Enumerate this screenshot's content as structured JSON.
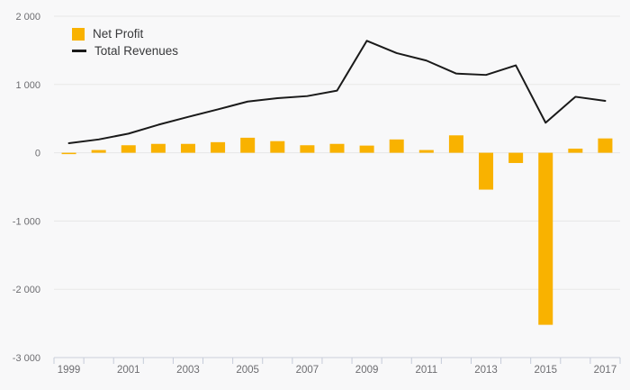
{
  "legend": {
    "items": [
      {
        "label": "Net Profit",
        "swatch": "bar-swatch",
        "color": "#f9b200"
      },
      {
        "label": "Total Revenues",
        "swatch": "line-swatch",
        "color": "#1a1a1a"
      }
    ]
  },
  "chart_data": {
    "type": "combo",
    "title": "",
    "x": [
      1999,
      2000,
      2001,
      2002,
      2003,
      2004,
      2005,
      2006,
      2007,
      2008,
      2009,
      2010,
      2011,
      2012,
      2013,
      2014,
      2015,
      2016,
      2017
    ],
    "series": [
      {
        "name": "Net Profit",
        "type": "bar",
        "color": "#f9b200",
        "values": [
          -20,
          40,
          110,
          130,
          130,
          155,
          220,
          170,
          110,
          130,
          105,
          195,
          40,
          255,
          -540,
          -150,
          -2520,
          60,
          210
        ]
      },
      {
        "name": "Total Revenues",
        "type": "line",
        "color": "#1a1a1a",
        "values": [
          140,
          195,
          280,
          410,
          525,
          635,
          750,
          800,
          830,
          910,
          1640,
          1460,
          1350,
          1160,
          1140,
          1280,
          440,
          820,
          760
        ]
      }
    ],
    "ylim": [
      -3000,
      2000
    ],
    "yticks": [
      {
        "value": 2000,
        "label": "2 000"
      },
      {
        "value": 1000,
        "label": "1 000"
      },
      {
        "value": 0,
        "label": "0"
      },
      {
        "value": -1000,
        "label": "-1 000"
      },
      {
        "value": -2000,
        "label": "-2 000"
      },
      {
        "value": -3000,
        "label": "-3 000"
      }
    ],
    "xtick_labels": [
      "1999",
      "2001",
      "2003",
      "2005",
      "2007",
      "2009",
      "2011",
      "2013",
      "2015",
      "2017"
    ],
    "grid": true,
    "legend_position": "top-left"
  },
  "colors": {
    "background": "#f8f8f9",
    "grid": "#e7e7e7",
    "axis": "#ccd1dc",
    "tick": "#c5cbd9",
    "axis_label": "#6d6d71",
    "legend_text": "#37383a"
  }
}
